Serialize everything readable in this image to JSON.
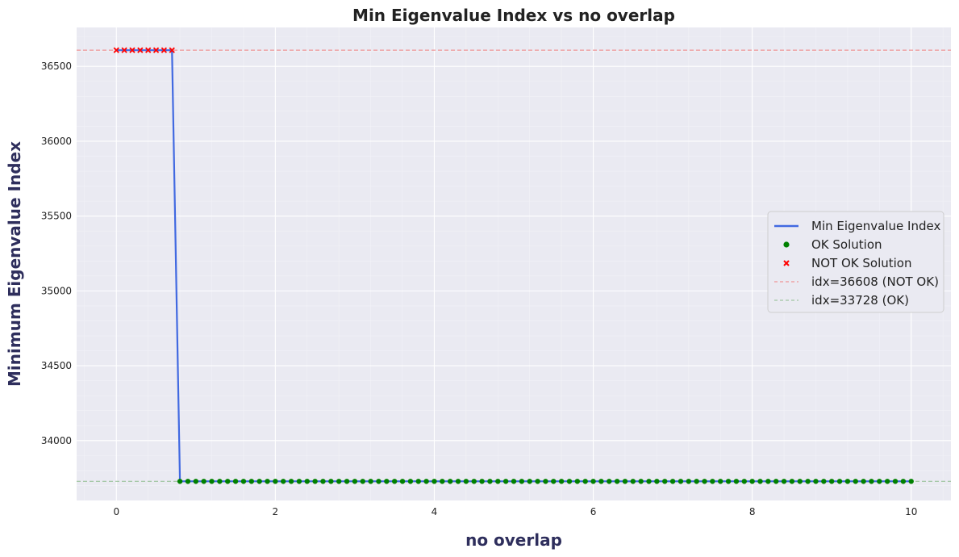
{
  "chart_data": {
    "type": "line",
    "title": "Min Eigenvalue Index vs no overlap",
    "xlabel": "no overlap",
    "ylabel": "Minimum Eigenvalue Index",
    "xlim": [
      -0.5,
      10.5
    ],
    "ylim": [
      33600,
      36760
    ],
    "x_ticks": [
      0,
      2,
      4,
      6,
      8,
      10
    ],
    "y_ticks": [
      34000,
      34500,
      35000,
      35500,
      36000,
      36500
    ],
    "grid": true,
    "legend_position": "center-right",
    "x_step": 0.1,
    "x_start": 0,
    "x_end": 10,
    "not_ok_until": 0.7,
    "not_ok_value": 36608,
    "ok_value": 33728,
    "series": [
      {
        "name": "Min Eigenvalue Index",
        "kind": "line",
        "color": "#4169e1"
      },
      {
        "name": "OK Solution",
        "kind": "scatter-dot",
        "color": "#008000"
      },
      {
        "name": "NOT OK Solution",
        "kind": "scatter-x",
        "color": "#ff0000"
      }
    ],
    "reference_lines": [
      {
        "label": "idx=36608 (NOT OK)",
        "value": 36608,
        "color": "#f08080"
      },
      {
        "label": "idx=33728 (OK)",
        "value": 33728,
        "color": "#8fbc8f"
      }
    ],
    "colors": {
      "plot_bg": "#eaeaf2",
      "grid_major": "#ffffff",
      "grid_minor": "#f2f2f7"
    }
  }
}
